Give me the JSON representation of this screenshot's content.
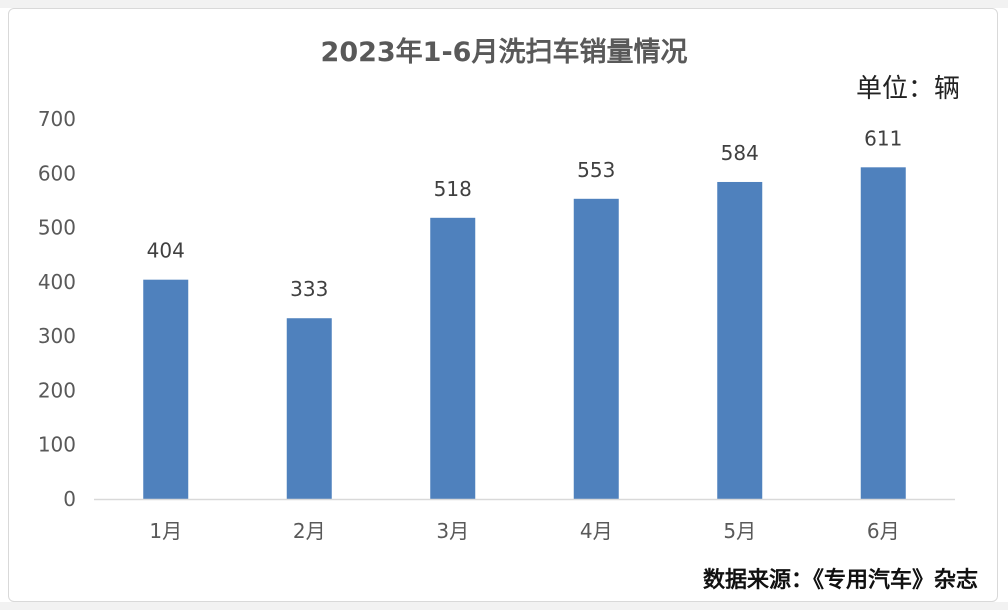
{
  "chart_data": {
    "type": "bar",
    "title": "2023年1-6月洗扫车销量情况",
    "unit_label": "单位：辆",
    "source_label": "数据来源：《专用汽车》杂志",
    "categories": [
      "1月",
      "2月",
      "3月",
      "4月",
      "5月",
      "6月"
    ],
    "values": [
      404,
      333,
      518,
      553,
      584,
      611
    ],
    "ylim": [
      0,
      700
    ],
    "yticks": [
      0,
      100,
      200,
      300,
      400,
      500,
      600,
      700
    ],
    "grid": false,
    "bar_color": "#4f81bd",
    "axis_color": "#d9d9d9"
  }
}
